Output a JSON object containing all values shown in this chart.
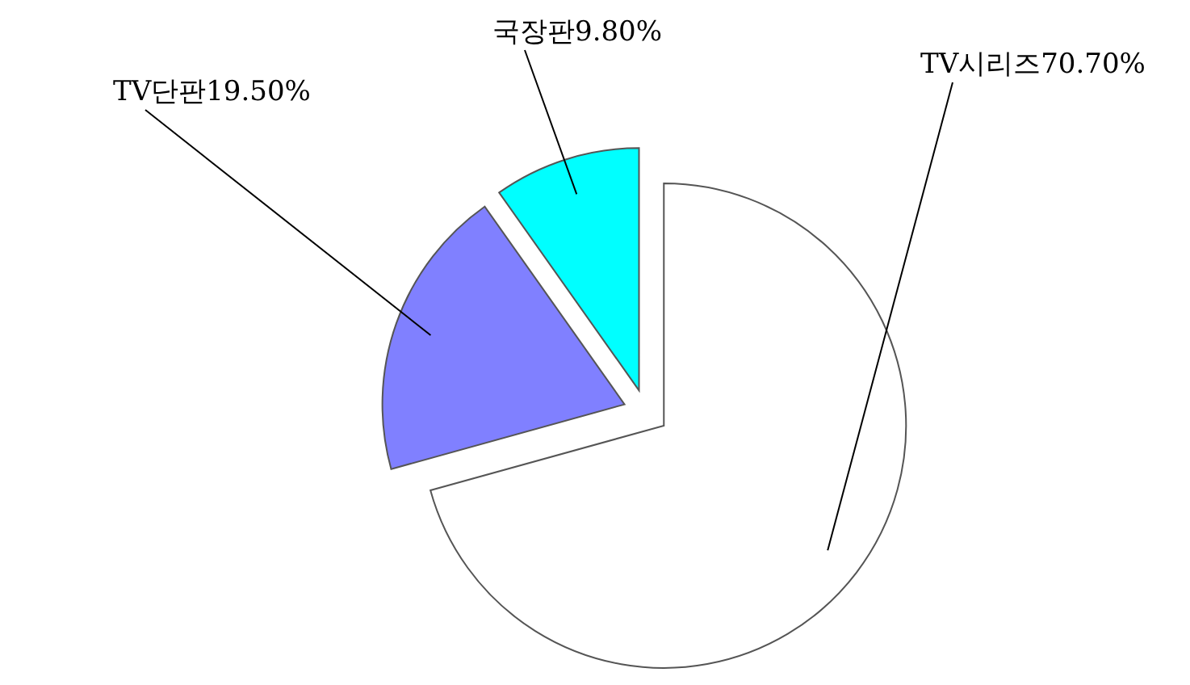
{
  "chart_data": {
    "type": "pie",
    "categories": [
      "TV시리즈",
      "TV단판",
      "국장판"
    ],
    "values": [
      70.7,
      19.5,
      9.8
    ],
    "value_labels": [
      "70.70%",
      "19.50%",
      "9.80%"
    ],
    "colors": [
      "#ffffff",
      "#8080ff",
      "#00ffff"
    ]
  }
}
